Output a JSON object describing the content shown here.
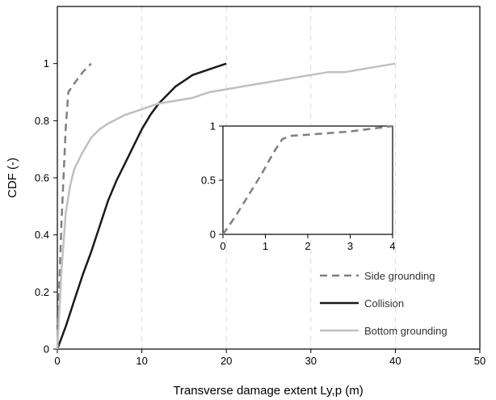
{
  "chart_data": [
    {
      "type": "line",
      "xlabel": "Transverse  damage  extent  Ly,p (m)",
      "ylabel": "CDF (-)",
      "xlim": [
        0,
        50
      ],
      "ylim": [
        0,
        1.2
      ],
      "x_ticks": [
        "0",
        "10",
        "20",
        "30",
        "40",
        "50"
      ],
      "y_ticks": [
        "0",
        "0.2",
        "0.4",
        "0.6",
        "0.8",
        "1"
      ],
      "grid": "vertical dashed",
      "legend_position": "bottom-right",
      "series": [
        {
          "name": "Side grounding",
          "color": "#7f7f7f",
          "dash": "dashed",
          "x": [
            0,
            0.2,
            0.5,
            0.8,
            1.0,
            1.3,
            2.0,
            3.0,
            4.0
          ],
          "y": [
            0,
            0.2,
            0.45,
            0.65,
            0.78,
            0.9,
            0.93,
            0.97,
            1.0
          ]
        },
        {
          "name": "Collision",
          "color": "#1a1a1a",
          "dash": "solid",
          "x": [
            0,
            1,
            2,
            3,
            4,
            5,
            6,
            7,
            8,
            9,
            10,
            11,
            12,
            13,
            14,
            15,
            16,
            17,
            18,
            19,
            20
          ],
          "y": [
            0,
            0.08,
            0.17,
            0.26,
            0.34,
            0.43,
            0.52,
            0.59,
            0.65,
            0.71,
            0.77,
            0.82,
            0.86,
            0.89,
            0.92,
            0.94,
            0.96,
            0.97,
            0.98,
            0.99,
            1.0
          ]
        },
        {
          "name": "Bottom grounding",
          "color": "#c0c0c0",
          "dash": "solid",
          "x": [
            0,
            0.5,
            1,
            1.5,
            2,
            3,
            4,
            5,
            6,
            8,
            10,
            12,
            14,
            16,
            18,
            20,
            22,
            24,
            26,
            28,
            30,
            32,
            34,
            36,
            38,
            40
          ],
          "y": [
            0,
            0.28,
            0.48,
            0.57,
            0.63,
            0.69,
            0.74,
            0.77,
            0.79,
            0.82,
            0.84,
            0.86,
            0.87,
            0.88,
            0.9,
            0.91,
            0.92,
            0.93,
            0.94,
            0.95,
            0.96,
            0.97,
            0.97,
            0.98,
            0.99,
            1.0
          ]
        }
      ]
    },
    {
      "type": "line",
      "xlim": [
        0,
        4
      ],
      "ylim": [
        0,
        1
      ],
      "x_ticks": [
        "0",
        "1",
        "2",
        "3",
        "4"
      ],
      "y_ticks": [
        "0",
        "0.5",
        "1"
      ],
      "grid": "none",
      "series": [
        {
          "color": "#7f7f7f",
          "dash": "dashed",
          "x": [
            0,
            0.3,
            0.6,
            0.9,
            1.2,
            1.4,
            1.6,
            2.0,
            3.0,
            4.0
          ],
          "y": [
            0,
            0.17,
            0.36,
            0.55,
            0.76,
            0.88,
            0.91,
            0.92,
            0.95,
            1.0
          ]
        }
      ]
    }
  ]
}
